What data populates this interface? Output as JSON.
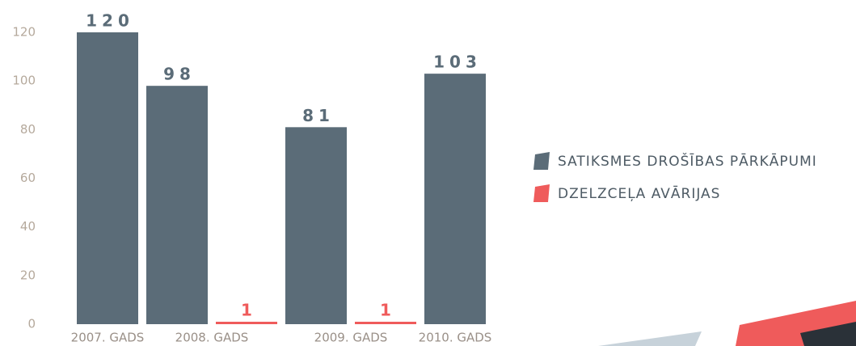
{
  "chart_data": {
    "type": "bar",
    "categories": [
      "2007. GADS",
      "2008. GADS",
      "2009. GADS",
      "2010. GADS"
    ],
    "series": [
      {
        "name": "SATIKSMES DROŠĪBAS PĀRKĀPUMI",
        "color": "#5b6c78",
        "values": [
          120,
          98,
          81,
          103
        ]
      },
      {
        "name": "DZELZCEĻA AVĀRIJAS",
        "color": "#ef5b5b",
        "values": [
          null,
          1,
          1,
          null
        ]
      }
    ],
    "ylim": [
      0,
      120
    ],
    "yticks": [
      0,
      20,
      40,
      60,
      80,
      100,
      120
    ]
  }
}
